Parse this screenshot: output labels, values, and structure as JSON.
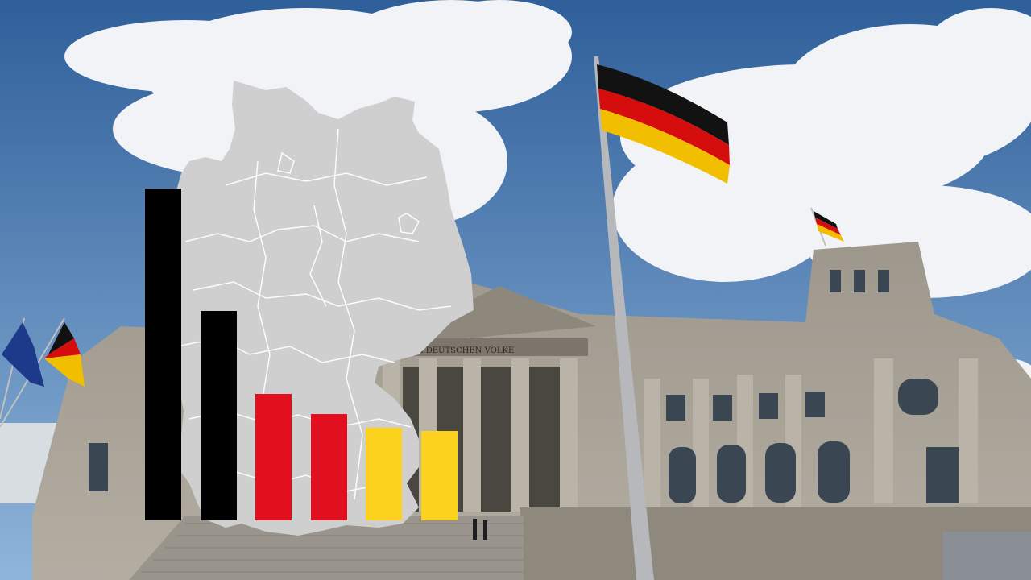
{
  "colors": {
    "sky_top": "#3f6ea8",
    "sky_bottom": "#86aed6",
    "stone": "#a7a197",
    "stone_dark": "#6d685f",
    "map_fill": "#cfcfcf",
    "map_border": "#ffffff",
    "flag_black": "#111111",
    "flag_red": "#dd0000",
    "flag_gold": "#ffce00"
  },
  "inscription": "DEM DEUTSCHEN VOLKE",
  "bar_chart": {
    "max": 100,
    "bars": [
      {
        "value": 100,
        "color": "#000000"
      },
      {
        "value": 63,
        "color": "#000000"
      },
      {
        "value": 38,
        "color": "#e0101e"
      },
      {
        "value": 32,
        "color": "#e0101e"
      },
      {
        "value": 28,
        "color": "#fdd21f"
      },
      {
        "value": 27,
        "color": "#fdd21f"
      }
    ]
  }
}
